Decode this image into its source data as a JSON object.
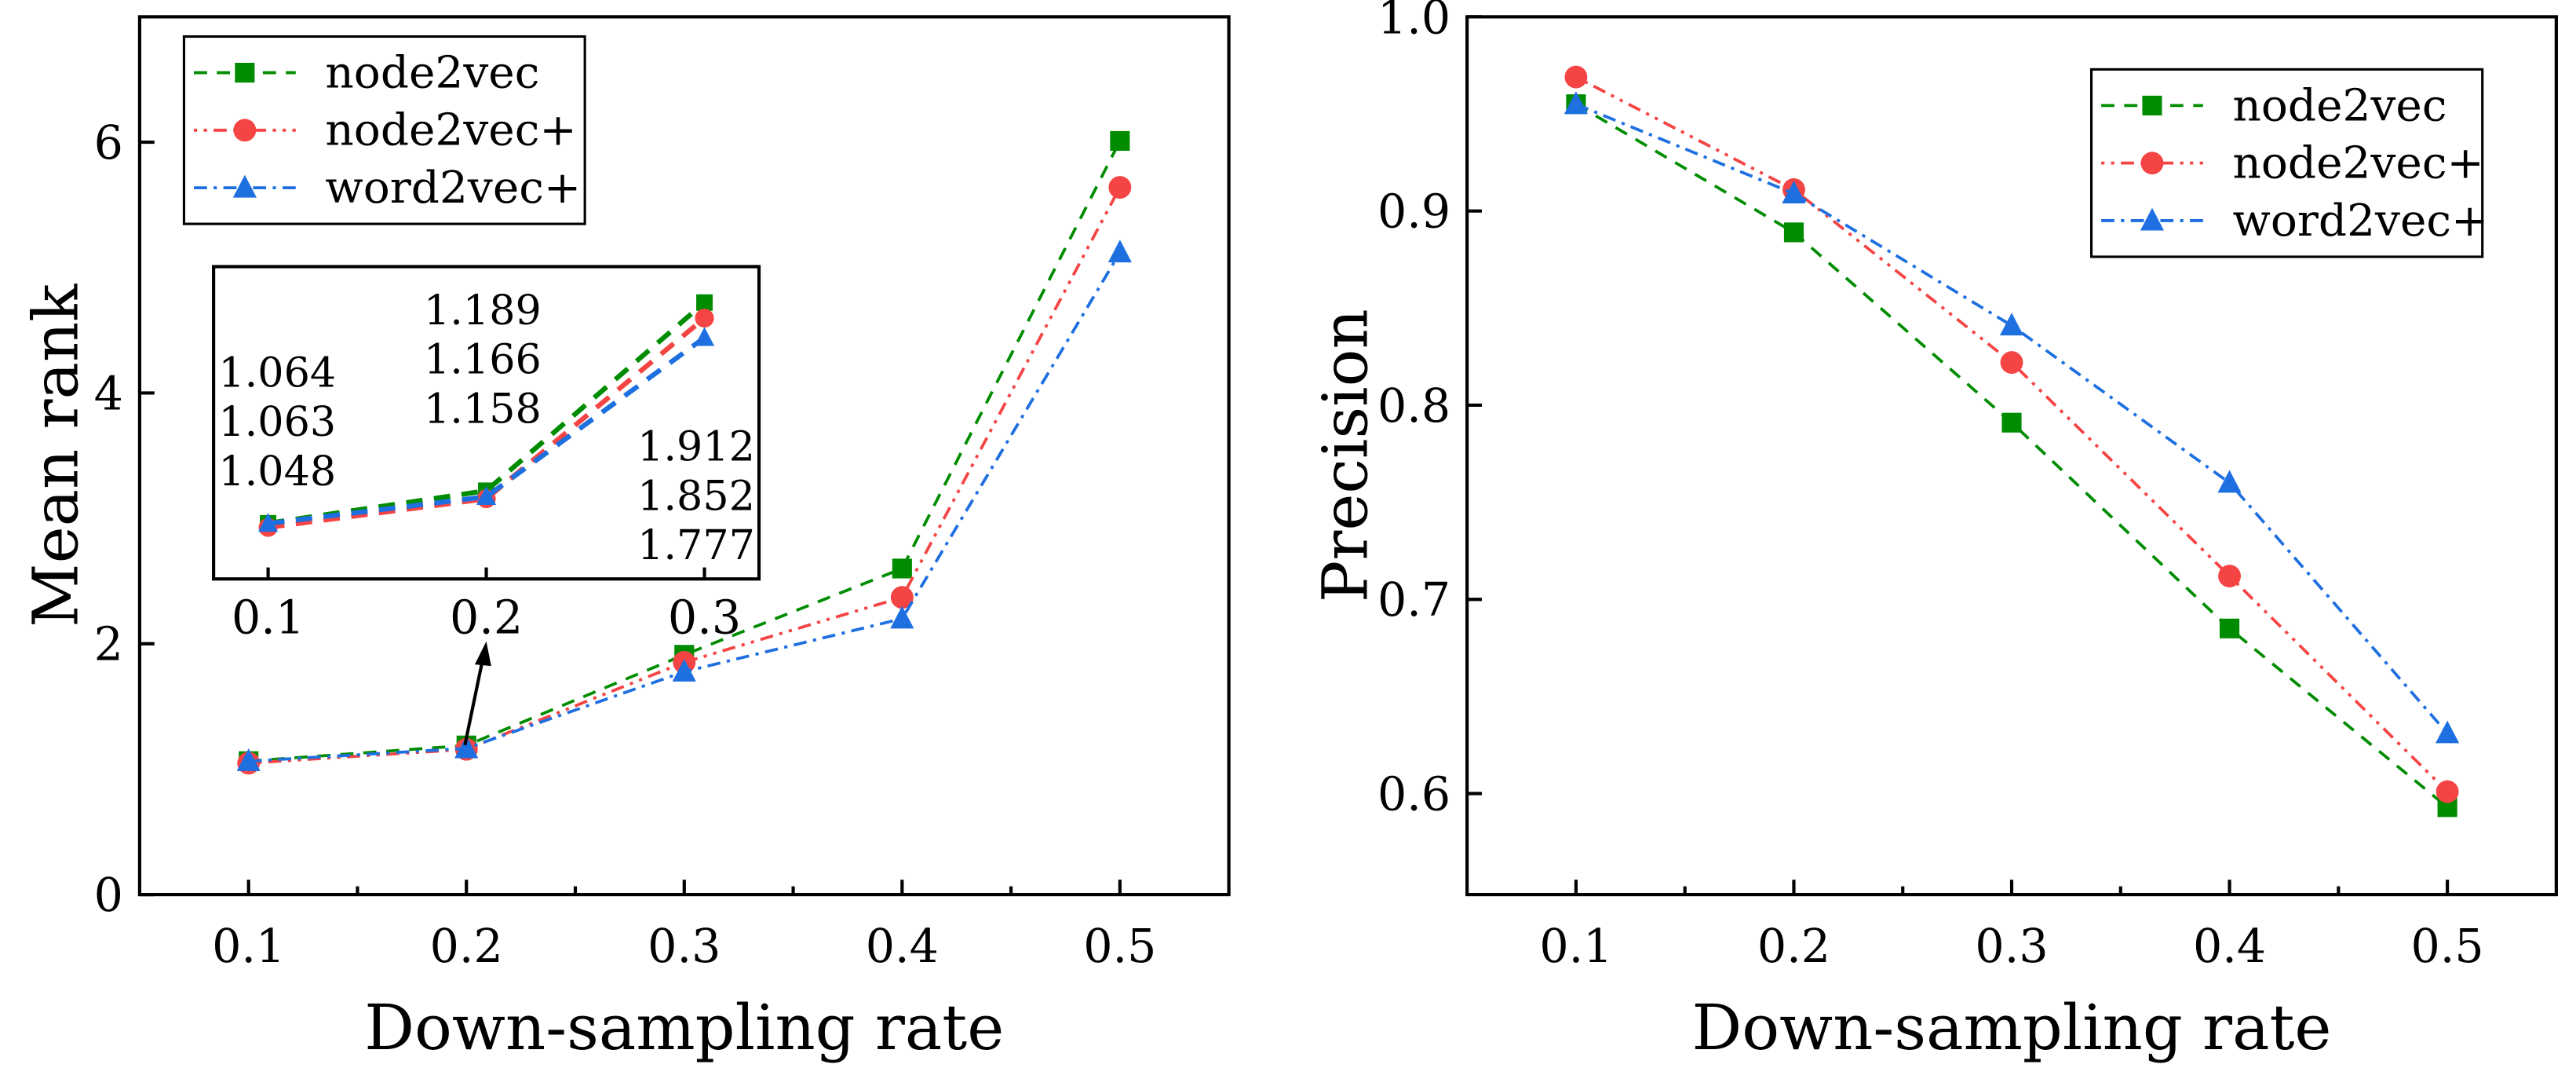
{
  "colors": {
    "node2vec": "#008c00",
    "node2vec+": "#f44444",
    "word2vec+": "#1e6fe0"
  },
  "chart_data": [
    {
      "type": "line",
      "title": "",
      "xlabel": "Down-sampling rate",
      "ylabel": "Mean rank",
      "x": [
        0.1,
        0.2,
        0.3,
        0.4,
        0.5
      ],
      "xticks": [
        "0.1",
        "0.2",
        "0.3",
        "0.4",
        "0.5"
      ],
      "yticks": [
        "0",
        "2",
        "4",
        "6"
      ],
      "ytick_values": [
        0,
        2,
        4,
        6
      ],
      "xlim": [
        0.05,
        0.55
      ],
      "ylim": [
        0,
        7
      ],
      "grid": false,
      "legend_position": "top-left",
      "series": [
        {
          "name": "node2vec",
          "marker": "square",
          "style": "dashed",
          "values": [
            1.064,
            1.189,
            1.912,
            2.6,
            6.01
          ]
        },
        {
          "name": "node2vec+",
          "marker": "circle",
          "style": "dot-dot-dash",
          "values": [
            1.048,
            1.158,
            1.852,
            2.37,
            5.64
          ]
        },
        {
          "name": "word2vec+",
          "marker": "triangle",
          "style": "dash-dot",
          "values": [
            1.063,
            1.166,
            1.777,
            2.2,
            5.12
          ]
        }
      ],
      "inset": {
        "x": [
          0.1,
          0.2,
          0.3
        ],
        "xticks": [
          "0.1",
          "0.2",
          "0.3"
        ],
        "xlim": [
          0.075,
          0.325
        ],
        "ylim": [
          0.85,
          2.05
        ],
        "annotations": [
          {
            "x": "0.1",
            "labels": [
              "1.064",
              "1.063",
              "1.048"
            ]
          },
          {
            "x": "0.2",
            "labels": [
              "1.189",
              "1.166",
              "1.158"
            ]
          },
          {
            "x": "0.3",
            "labels": [
              "1.912",
              "1.852",
              "1.777"
            ]
          }
        ]
      }
    },
    {
      "type": "line",
      "title": "",
      "xlabel": "Down-sampling rate",
      "ylabel": "Precision",
      "x": [
        0.1,
        0.2,
        0.3,
        0.4,
        0.5
      ],
      "xticks": [
        "0.1",
        "0.2",
        "0.3",
        "0.4",
        "0.5"
      ],
      "yticks": [
        "0.6",
        "0.7",
        "0.8",
        "0.9",
        "1.0"
      ],
      "ytick_values": [
        0.6,
        0.7,
        0.8,
        0.9,
        1.0
      ],
      "xlim": [
        0.05,
        0.55
      ],
      "ylim": [
        0.548,
        1.0
      ],
      "grid": false,
      "legend_position": "top-right",
      "series": [
        {
          "name": "node2vec",
          "marker": "square",
          "style": "dashed",
          "values": [
            0.955,
            0.889,
            0.791,
            0.685,
            0.593
          ]
        },
        {
          "name": "node2vec+",
          "marker": "circle",
          "style": "dot-dot-dash",
          "values": [
            0.969,
            0.911,
            0.822,
            0.712,
            0.601
          ]
        },
        {
          "name": "word2vec+",
          "marker": "triangle",
          "style": "dash-dot",
          "values": [
            0.955,
            0.909,
            0.841,
            0.76,
            0.631
          ]
        }
      ]
    }
  ]
}
